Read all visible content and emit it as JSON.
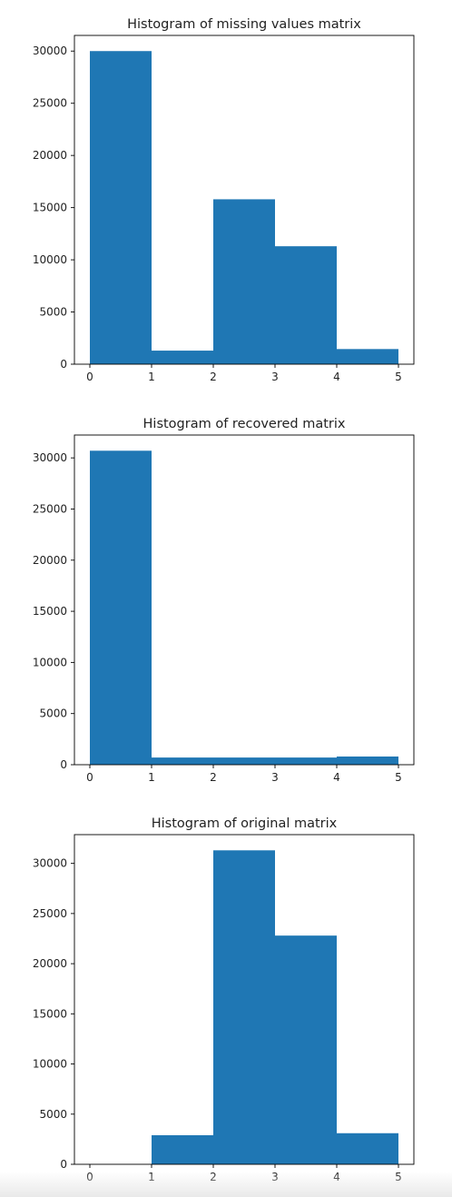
{
  "chart_data": [
    {
      "type": "bar",
      "title": "Histogram of missing values matrix",
      "xlabel": "",
      "ylabel": "",
      "bin_edges": [
        0,
        1,
        2,
        3,
        4,
        5
      ],
      "values": [
        30000,
        1300,
        15800,
        11300,
        1450
      ],
      "xticks": [
        "0",
        "1",
        "2",
        "3",
        "4",
        "5"
      ],
      "yticks": [
        "0",
        "5000",
        "10000",
        "15000",
        "20000",
        "25000",
        "30000"
      ],
      "xlim": [
        -0.25,
        5.25
      ],
      "ylim": [
        0,
        31500
      ],
      "grid": false,
      "color": "#1f77b4"
    },
    {
      "type": "bar",
      "title": "Histogram of recovered matrix",
      "xlabel": "",
      "ylabel": "",
      "bin_edges": [
        0,
        1,
        2,
        3,
        4,
        5
      ],
      "values": [
        30700,
        700,
        700,
        700,
        800
      ],
      "xticks": [
        "0",
        "1",
        "2",
        "3",
        "4",
        "5"
      ],
      "yticks": [
        "0",
        "5000",
        "10000",
        "15000",
        "20000",
        "25000",
        "30000"
      ],
      "xlim": [
        -0.25,
        5.25
      ],
      "ylim": [
        0,
        32235
      ],
      "grid": false,
      "color": "#1f77b4"
    },
    {
      "type": "bar",
      "title": "Histogram of original matrix",
      "xlabel": "",
      "ylabel": "",
      "bin_edges": [
        0,
        1,
        2,
        3,
        4,
        5
      ],
      "values": [
        0,
        2900,
        31300,
        22800,
        3100
      ],
      "xticks": [
        "0",
        "1",
        "2",
        "3",
        "4",
        "5"
      ],
      "yticks": [
        "0",
        "5000",
        "10000",
        "15000",
        "20000",
        "25000",
        "30000"
      ],
      "xlim": [
        -0.25,
        5.25
      ],
      "ylim": [
        0,
        32865
      ],
      "grid": false,
      "color": "#1f77b4"
    }
  ]
}
